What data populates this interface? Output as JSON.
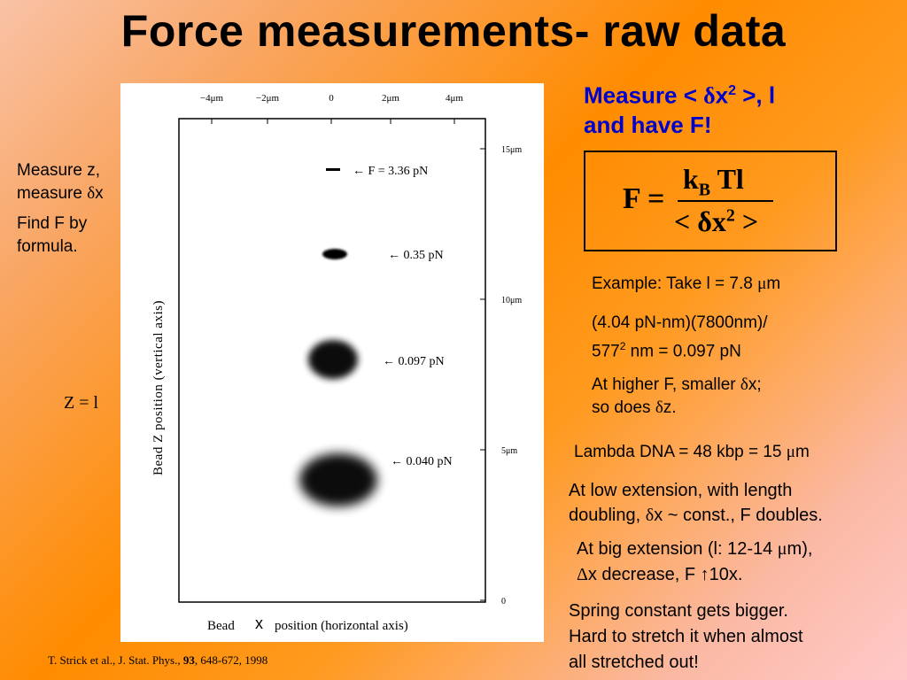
{
  "title": "Force measurements- raw data",
  "left": {
    "measure_z": "Measure z,",
    "measure_dx_prefix": "measure ",
    "measure_dx_symbol": "δ",
    "measure_dx_suffix": "x",
    "find_f_line1": "Find F by",
    "find_f_line2": "formula.",
    "z_eq_l": "Z = l"
  },
  "right": {
    "heading_prefix": "Measure < ",
    "heading_delta": "δ",
    "heading_x": "x",
    "heading_sup": "2",
    "heading_suffix": " >, l",
    "heading_line2": "and have F!",
    "formula": {
      "lhs": "F =",
      "k": "k",
      "b_sub": "B",
      "tl": " Tl",
      "den_open": "< ",
      "den_delta": "δ",
      "den_x": "x",
      "den_sup": "2",
      "den_close": " >"
    },
    "example_prefix": "Example: Take l = 7.8 ",
    "example_mu": "μ",
    "example_suffix": "m",
    "calc_line1": "(4.04 pN-nm)(7800nm)/",
    "calc_577": "577",
    "calc_sup": "2",
    "calc_rest": " nm = 0.097 pN",
    "higher_line1_prefix": "At higher F, smaller ",
    "higher_delta": "δ",
    "higher_line1_suffix": "x;",
    "higher_line2_prefix": "so does ",
    "higher_delta2": "δ",
    "higher_line2_suffix": "z.",
    "lambda_prefix": "Lambda DNA = 48 kbp = 15 ",
    "lambda_mu": "μ",
    "lambda_suffix": "m",
    "low_line1": "At low extension, with length",
    "low_line2_prefix": "doubling, ",
    "low_delta": "δ",
    "low_line2_suffix": "x ~ const., F doubles.",
    "big_line1_prefix": "At big extension (l: 12-14 ",
    "big_mu": "μ",
    "big_line1_suffix": "m),",
    "big_Delta": "Δ",
    "big_line2_suffix": "x decrease, F ↑10x.",
    "spring_line1": "Spring constant gets bigger.",
    "spring_line2": "Hard to stretch it when almost",
    "spring_line3": "all stretched out!"
  },
  "citation": {
    "prefix": "T. Strick et al., J. Stat. Phys., ",
    "volume": "93",
    "suffix": ", 648-672, 1998"
  },
  "plot": {
    "top_ticks": [
      "−4μm",
      "−2μm",
      "0",
      "2μm",
      "4μm"
    ],
    "right_ticks": [
      "15μm",
      "10μm",
      "5μm",
      "0"
    ],
    "force_labels": [
      "← F = 3.36 pN",
      "← 0.35 pN",
      "← 0.097 pN",
      "← 0.040 pN"
    ],
    "ylabel": "Bead Z position (vertical axis)",
    "xlabel_left": "Bead",
    "xlabel_x": "x",
    "xlabel_right": "position (horizontal axis)"
  }
}
